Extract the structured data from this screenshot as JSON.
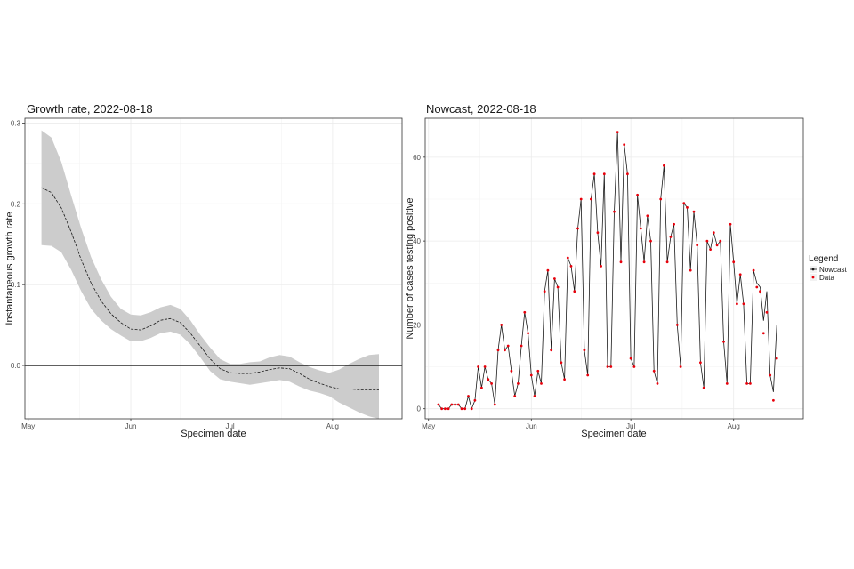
{
  "chart_data": [
    {
      "type": "line",
      "title": "Growth rate, 2022-08-18",
      "xlabel": "Specimen date",
      "ylabel": "Instantaneous growth rate",
      "x_axis": "date",
      "xlim": [
        "2022-04-30",
        "2022-08-22"
      ],
      "ylim": [
        -0.066,
        0.306
      ],
      "xticks": [
        {
          "date": "2022-05-01",
          "label": "May"
        },
        {
          "date": "2022-06-01",
          "label": "Jun"
        },
        {
          "date": "2022-07-01",
          "label": "Jul"
        },
        {
          "date": "2022-08-01",
          "label": "Aug"
        }
      ],
      "yticks": [
        0.0,
        0.1,
        0.2,
        0.3
      ],
      "ytick_labels": [
        "0.0",
        "0.1",
        "0.2",
        "0.3"
      ],
      "reference_line_y": 0,
      "grid": true,
      "series": [
        {
          "role": "estimate",
          "color": "#1a1a1a",
          "x": [
            "2022-05-05",
            "2022-05-08",
            "2022-05-11",
            "2022-05-14",
            "2022-05-17",
            "2022-05-20",
            "2022-05-23",
            "2022-05-26",
            "2022-05-29",
            "2022-06-01",
            "2022-06-04",
            "2022-06-07",
            "2022-06-10",
            "2022-06-13",
            "2022-06-16",
            "2022-06-19",
            "2022-06-22",
            "2022-06-25",
            "2022-06-28",
            "2022-07-01",
            "2022-07-04",
            "2022-07-07",
            "2022-07-10",
            "2022-07-13",
            "2022-07-16",
            "2022-07-19",
            "2022-07-22",
            "2022-07-25",
            "2022-07-28",
            "2022-07-31",
            "2022-08-03",
            "2022-08-06",
            "2022-08-09",
            "2022-08-12",
            "2022-08-15"
          ],
          "y": [
            0.22,
            0.214,
            0.195,
            0.165,
            0.131,
            0.102,
            0.08,
            0.064,
            0.053,
            0.045,
            0.044,
            0.049,
            0.056,
            0.058,
            0.053,
            0.04,
            0.024,
            0.008,
            -0.004,
            -0.009,
            -0.01,
            -0.01,
            -0.008,
            -0.005,
            -0.003,
            -0.004,
            -0.01,
            -0.017,
            -0.022,
            -0.026,
            -0.029,
            -0.029,
            -0.03,
            -0.03,
            -0.03
          ]
        },
        {
          "role": "confidence band",
          "color": "#cccccc",
          "x": [
            "2022-05-05",
            "2022-05-08",
            "2022-05-11",
            "2022-05-14",
            "2022-05-17",
            "2022-05-20",
            "2022-05-23",
            "2022-05-26",
            "2022-05-29",
            "2022-06-01",
            "2022-06-04",
            "2022-06-07",
            "2022-06-10",
            "2022-06-13",
            "2022-06-16",
            "2022-06-19",
            "2022-06-22",
            "2022-06-25",
            "2022-06-28",
            "2022-07-01",
            "2022-07-04",
            "2022-07-07",
            "2022-07-10",
            "2022-07-13",
            "2022-07-16",
            "2022-07-19",
            "2022-07-22",
            "2022-07-25",
            "2022-07-28",
            "2022-07-31",
            "2022-08-03",
            "2022-08-06",
            "2022-08-09",
            "2022-08-12",
            "2022-08-15"
          ],
          "lower": [
            0.149,
            0.148,
            0.14,
            0.118,
            0.092,
            0.07,
            0.056,
            0.045,
            0.037,
            0.03,
            0.03,
            0.034,
            0.04,
            0.042,
            0.038,
            0.026,
            0.01,
            -0.007,
            -0.017,
            -0.02,
            -0.022,
            -0.024,
            -0.022,
            -0.02,
            -0.018,
            -0.02,
            -0.026,
            -0.031,
            -0.034,
            -0.038,
            -0.046,
            -0.052,
            -0.058,
            -0.063,
            -0.066
          ],
          "upper": [
            0.291,
            0.282,
            0.252,
            0.21,
            0.17,
            0.134,
            0.107,
            0.085,
            0.07,
            0.063,
            0.062,
            0.066,
            0.072,
            0.075,
            0.07,
            0.056,
            0.038,
            0.022,
            0.008,
            0.002,
            0.002,
            0.004,
            0.005,
            0.01,
            0.013,
            0.011,
            0.004,
            -0.002,
            -0.006,
            -0.009,
            -0.005,
            0.002,
            0.008,
            0.013,
            0.014
          ]
        }
      ]
    },
    {
      "type": "line",
      "title": "Nowcast, 2022-08-18",
      "xlabel": "Specimen date",
      "ylabel": "Number of cases testing positive",
      "x_axis": "date",
      "xlim": [
        "2022-04-30",
        "2022-08-22"
      ],
      "ylim": [
        -2.4,
        69.3
      ],
      "xticks": [
        {
          "date": "2022-05-01",
          "label": "May"
        },
        {
          "date": "2022-06-01",
          "label": "Jun"
        },
        {
          "date": "2022-07-01",
          "label": "Jul"
        },
        {
          "date": "2022-08-01",
          "label": "Aug"
        }
      ],
      "yticks": [
        0,
        20,
        40,
        60
      ],
      "ytick_labels": [
        "0",
        "20",
        "40",
        "60"
      ],
      "grid": true,
      "legend": {
        "title": "Legend",
        "position": "right",
        "entries": [
          {
            "label": "Nowcast",
            "color": "#1a1a1a"
          },
          {
            "label": "Data",
            "color": "#e8000b"
          }
        ]
      },
      "start_date": "2022-05-04",
      "series": [
        {
          "name": "Nowcast",
          "color": "#1a1a1a",
          "values": [
            1,
            0,
            0,
            0,
            1,
            1,
            1,
            0,
            0,
            3,
            0,
            2,
            10,
            5,
            10,
            7,
            6,
            1,
            14,
            20,
            14,
            15,
            9,
            3,
            6,
            15,
            23,
            18,
            8,
            3,
            9,
            6,
            28,
            33,
            14,
            31,
            29,
            11,
            7,
            36,
            34,
            28,
            43,
            50,
            14,
            8,
            50,
            56,
            42,
            34,
            56,
            10,
            10,
            47,
            66,
            35,
            63,
            56,
            12,
            10,
            51,
            43,
            35,
            46,
            40,
            9,
            6,
            50,
            58,
            35,
            41,
            44,
            20,
            10,
            49,
            48,
            33,
            47,
            39,
            11,
            5,
            40,
            38,
            42,
            39,
            40,
            16,
            6,
            44,
            35,
            25,
            32,
            25,
            6,
            6,
            33,
            30,
            29,
            21,
            28,
            8,
            4,
            20
          ]
        },
        {
          "name": "Data",
          "color": "#e8000b",
          "values": [
            1,
            0,
            0,
            0,
            1,
            1,
            1,
            0,
            0,
            3,
            0,
            2,
            10,
            5,
            10,
            7,
            6,
            1,
            14,
            20,
            14,
            15,
            9,
            3,
            6,
            15,
            23,
            18,
            8,
            3,
            9,
            6,
            28,
            33,
            14,
            31,
            29,
            11,
            7,
            36,
            34,
            28,
            43,
            50,
            14,
            8,
            50,
            56,
            42,
            34,
            56,
            10,
            10,
            47,
            66,
            35,
            63,
            56,
            12,
            10,
            51,
            43,
            35,
            46,
            40,
            9,
            6,
            50,
            58,
            35,
            41,
            44,
            20,
            10,
            49,
            48,
            33,
            47,
            39,
            11,
            5,
            40,
            38,
            42,
            39,
            40,
            16,
            6,
            44,
            35,
            25,
            32,
            25,
            6,
            6,
            33,
            29,
            28,
            18,
            23,
            8,
            2,
            12
          ]
        }
      ]
    }
  ]
}
